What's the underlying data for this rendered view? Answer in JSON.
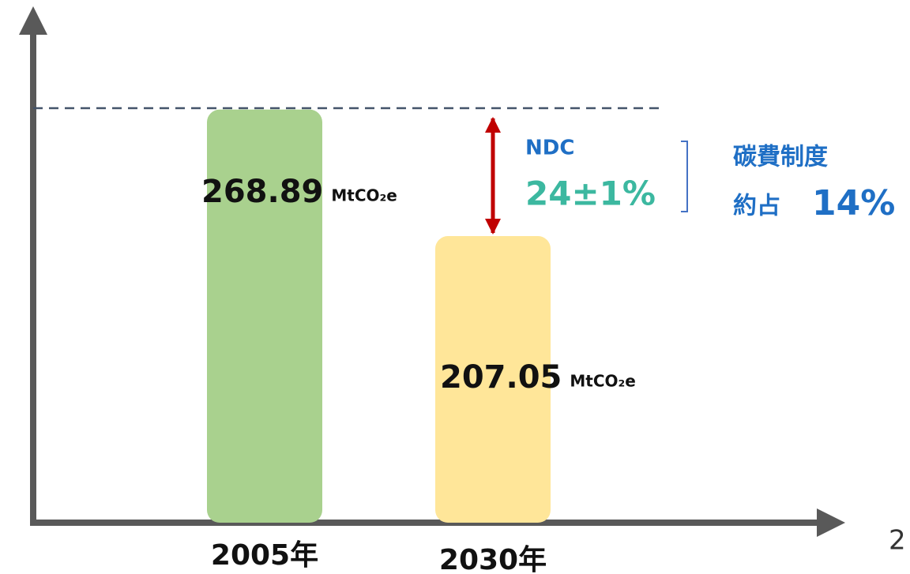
{
  "chart_data": {
    "type": "bar",
    "categories": [
      "2005年",
      "2030年"
    ],
    "values": [
      268.89,
      207.05
    ],
    "unit": "MtCO₂e",
    "colors": [
      "#a9d18e",
      "#ffe699"
    ],
    "ylim": [
      67,
      307
    ],
    "annotations": {
      "ndc_title": "NDC",
      "ndc_value": "24±1%",
      "fee_title": "碳費制度",
      "fee_prefix": "約占",
      "fee_value": "14%"
    },
    "page_number": "2"
  }
}
